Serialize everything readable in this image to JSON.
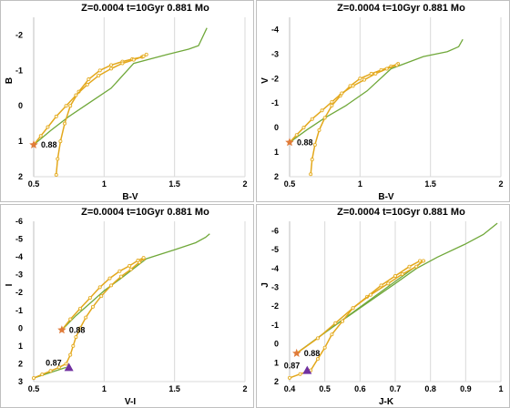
{
  "chart_data": [
    {
      "type": "line",
      "title": "Z=0.0004  t=10Gyr  0.881 Mo",
      "xlabel": "B-V",
      "ylabel": "B",
      "xlim": [
        0.5,
        2
      ],
      "ylim": [
        2,
        -2.5
      ],
      "y_inverted": true,
      "x_ticks": [
        "0.5",
        "1",
        "1.5",
        "2"
      ],
      "y_ticks": [
        "-2",
        "-1",
        "0",
        "1",
        "2"
      ],
      "grid": "vertical",
      "series": [
        {
          "color": "#e3a81c",
          "marker": "circle",
          "x": [
            0.66,
            0.67,
            0.69,
            0.72,
            0.76,
            0.82,
            0.89,
            0.97,
            1.05,
            1.13,
            1.2,
            1.27,
            1.3
          ],
          "y": [
            1.95,
            1.5,
            1.0,
            0.5,
            0.0,
            -0.4,
            -0.75,
            -1.0,
            -1.15,
            -1.25,
            -1.32,
            -1.38,
            -1.45
          ]
        },
        {
          "color": "#e3a81c",
          "marker": "circle",
          "x": [
            0.5,
            0.55,
            0.6,
            0.66,
            0.73,
            0.8,
            0.88,
            0.96,
            1.05,
            1.13,
            1.21,
            1.28
          ],
          "y": [
            1.1,
            0.85,
            0.6,
            0.3,
            0.0,
            -0.3,
            -0.6,
            -0.85,
            -1.05,
            -1.2,
            -1.3,
            -1.4
          ]
        },
        {
          "color": "#70a83a",
          "marker": "none",
          "x": [
            0.5,
            0.62,
            0.75,
            0.9,
            1.05,
            1.21,
            1.45,
            1.6,
            1.67,
            1.73
          ],
          "y": [
            1.1,
            0.7,
            0.3,
            -0.1,
            -0.5,
            -1.2,
            -1.45,
            -1.6,
            -1.7,
            -2.2
          ]
        }
      ],
      "markers": [
        {
          "label": "0.88",
          "x": 0.5,
          "y": 1.1,
          "shape": "star",
          "color": "#e07b39"
        }
      ]
    },
    {
      "type": "line",
      "title": "Z=0.0004  t=10Gyr  0.881 Mo",
      "xlabel": "B-V",
      "ylabel": "V",
      "xlim": [
        0.5,
        2
      ],
      "ylim": [
        2,
        -4.5
      ],
      "y_inverted": true,
      "x_ticks": [
        "0.5",
        "1",
        "1.5",
        "2"
      ],
      "y_ticks": [
        "-4",
        "-3",
        "-2",
        "-1",
        "0",
        "1",
        "2"
      ],
      "grid": "vertical",
      "series": [
        {
          "color": "#e3a81c",
          "marker": "circle",
          "x": [
            0.65,
            0.66,
            0.68,
            0.71,
            0.75,
            0.8,
            0.86,
            0.93,
            1.0,
            1.08,
            1.15,
            1.22,
            1.27
          ],
          "y": [
            1.9,
            1.3,
            0.7,
            0.1,
            -0.4,
            -0.9,
            -1.3,
            -1.7,
            -2.0,
            -2.2,
            -2.35,
            -2.5,
            -2.6
          ]
        },
        {
          "color": "#e3a81c",
          "marker": "circle",
          "x": [
            0.5,
            0.55,
            0.6,
            0.66,
            0.73,
            0.8,
            0.87,
            0.95,
            1.03,
            1.11,
            1.19,
            1.26
          ],
          "y": [
            0.6,
            0.3,
            0.0,
            -0.35,
            -0.7,
            -1.05,
            -1.4,
            -1.7,
            -1.95,
            -2.2,
            -2.4,
            -2.55
          ]
        },
        {
          "color": "#70a83a",
          "marker": "none",
          "x": [
            0.5,
            0.62,
            0.75,
            0.9,
            1.05,
            1.22,
            1.45,
            1.62,
            1.7,
            1.73
          ],
          "y": [
            0.6,
            0.1,
            -0.4,
            -0.9,
            -1.5,
            -2.4,
            -2.9,
            -3.1,
            -3.3,
            -3.6
          ]
        }
      ],
      "markers": [
        {
          "label": "0.88",
          "x": 0.5,
          "y": 0.6,
          "shape": "star",
          "color": "#e07b39"
        }
      ]
    },
    {
      "type": "line",
      "title": "Z=0.0004  t=10Gyr  0.881 Mo",
      "xlabel": "V-I",
      "ylabel": "I",
      "xlim": [
        0.5,
        2
      ],
      "ylim": [
        3,
        -6
      ],
      "y_inverted": true,
      "x_ticks": [
        "0.5",
        "1",
        "1.5",
        "2"
      ],
      "y_ticks": [
        "-6",
        "-5",
        "-4",
        "-3",
        "-2",
        "-1",
        "0",
        "1",
        "2",
        "3"
      ],
      "grid": "vertical",
      "series": [
        {
          "color": "#e3a81c",
          "marker": "circle",
          "x": [
            0.5,
            0.56,
            0.62,
            0.68,
            0.73,
            0.76,
            0.78,
            0.8,
            0.83,
            0.87,
            0.92,
            0.98,
            1.05,
            1.12,
            1.19,
            1.25,
            1.28
          ],
          "y": [
            2.8,
            2.6,
            2.4,
            2.2,
            2.0,
            1.5,
            1.0,
            0.5,
            0.0,
            -0.6,
            -1.2,
            -1.8,
            -2.4,
            -2.9,
            -3.3,
            -3.7,
            -3.9
          ]
        },
        {
          "color": "#e3a81c",
          "marker": "circle",
          "x": [
            0.7,
            0.76,
            0.83,
            0.9,
            0.97,
            1.04,
            1.11,
            1.18,
            1.24,
            1.28
          ],
          "y": [
            0.1,
            -0.5,
            -1.1,
            -1.7,
            -2.3,
            -2.8,
            -3.2,
            -3.5,
            -3.8,
            -3.95
          ]
        },
        {
          "color": "#70a83a",
          "marker": "none",
          "x": [
            0.7,
            0.8,
            0.9,
            1.0,
            1.12,
            1.3,
            1.5,
            1.65,
            1.72,
            1.75
          ],
          "y": [
            0.1,
            -0.7,
            -1.4,
            -2.1,
            -2.8,
            -3.9,
            -4.4,
            -4.8,
            -5.1,
            -5.3
          ]
        },
        {
          "color": "#70a83a",
          "marker": "none",
          "x": [
            0.5,
            0.73
          ],
          "y": [
            2.8,
            2.2
          ]
        }
      ],
      "markers": [
        {
          "label": "0.88",
          "x": 0.7,
          "y": 0.1,
          "shape": "star",
          "color": "#e07b39"
        },
        {
          "label": "0.87",
          "x": 0.75,
          "y": 2.2,
          "shape": "triangle",
          "color": "#7030a0"
        }
      ]
    },
    {
      "type": "line",
      "title": "Z=0.0004  t=10Gyr  0.881 Mo",
      "xlabel": "J-K",
      "ylabel": "J",
      "xlim": [
        0.4,
        1.0
      ],
      "ylim": [
        2,
        -6.5
      ],
      "y_inverted": true,
      "x_ticks": [
        "0.4",
        "0.5",
        "0.6",
        "0.7",
        "0.8",
        "0.9",
        "1"
      ],
      "y_ticks": [
        "-6",
        "-5",
        "-4",
        "-3",
        "-2",
        "-1",
        "0",
        "1",
        "2"
      ],
      "grid": "vertical",
      "series": [
        {
          "color": "#e3a81c",
          "marker": "circle",
          "x": [
            0.4,
            0.43,
            0.46,
            0.48,
            0.5,
            0.52,
            0.55,
            0.58,
            0.62,
            0.66,
            0.7,
            0.74,
            0.77
          ],
          "y": [
            1.8,
            1.6,
            1.4,
            0.8,
            0.2,
            -0.5,
            -1.2,
            -1.9,
            -2.5,
            -3.1,
            -3.6,
            -4.1,
            -4.4
          ]
        },
        {
          "color": "#e3a81c",
          "marker": "circle",
          "x": [
            0.42,
            0.48,
            0.53,
            0.58,
            0.63,
            0.68,
            0.72,
            0.76,
            0.78
          ],
          "y": [
            0.5,
            -0.3,
            -1.1,
            -1.9,
            -2.6,
            -3.2,
            -3.7,
            -4.1,
            -4.4
          ]
        },
        {
          "color": "#70a83a",
          "marker": "none",
          "x": [
            0.42,
            0.5,
            0.6,
            0.7,
            0.76,
            0.82,
            0.9,
            0.95,
            0.99
          ],
          "y": [
            0.5,
            -0.6,
            -1.9,
            -3.2,
            -4.0,
            -4.6,
            -5.3,
            -5.8,
            -6.4
          ]
        },
        {
          "color": "#70a83a",
          "marker": "none",
          "x": [
            0.42,
            0.78
          ],
          "y": [
            0.5,
            -4.4
          ]
        }
      ],
      "markers": [
        {
          "label": "0.88",
          "x": 0.42,
          "y": 0.5,
          "shape": "star",
          "color": "#e07b39"
        },
        {
          "label": "0.87",
          "x": 0.45,
          "y": 1.4,
          "shape": "triangle",
          "color": "#7030a0"
        }
      ]
    }
  ]
}
